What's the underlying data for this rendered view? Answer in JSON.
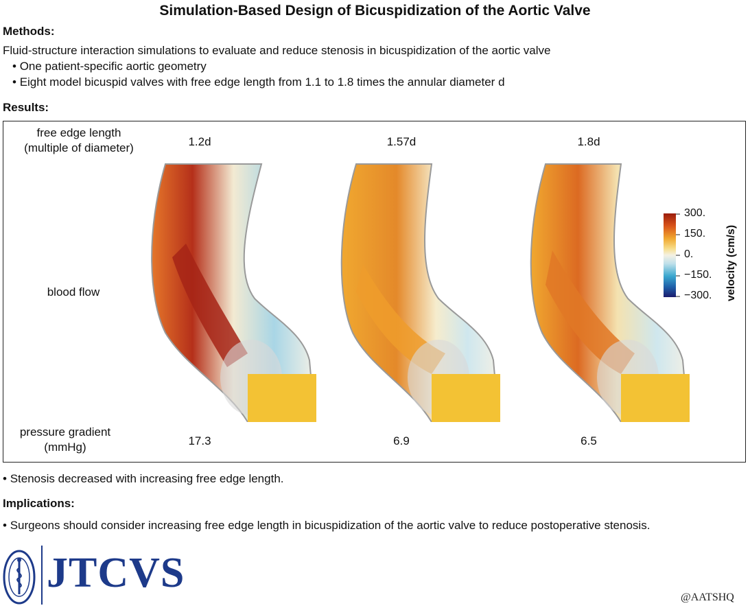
{
  "title": "Simulation-Based Design of Bicuspidization of the Aortic Valve",
  "methods": {
    "heading": "Methods:",
    "summary": "Fluid-structure interaction simulations to evaluate and reduce stenosis in bicuspidization of the aortic valve",
    "bullets": [
      "One patient-specific aortic geometry",
      "Eight model bicuspid valves with free edge length from 1.1 to 1.8 times the annular diameter d"
    ]
  },
  "results": {
    "heading": "Results:",
    "row_labels": {
      "free_edge": [
        "free edge length",
        "(multiple of diameter)"
      ],
      "blood_flow": "blood flow",
      "pressure": [
        "pressure gradient",
        "(mmHg)"
      ]
    },
    "columns": [
      {
        "free_edge": "1.2d",
        "pressure_gradient": "17.3",
        "intensity": "high"
      },
      {
        "free_edge": "1.57d",
        "pressure_gradient": "6.9",
        "intensity": "medium"
      },
      {
        "free_edge": "1.8d",
        "pressure_gradient": "6.5",
        "intensity": "medium"
      }
    ],
    "colorbar": {
      "label": "velocity (cm/s)",
      "ticks": [
        "300.",
        "150.",
        "0.",
        "−150.",
        "−300."
      ],
      "colors": [
        "#9b1c0c",
        "#d9541a",
        "#f0a830",
        "#f7dd8a",
        "#f4f1e4",
        "#bfe0ea",
        "#3aa7cf",
        "#1f5fa8",
        "#1c1c6e"
      ]
    },
    "finding": "Stenosis decreased with increasing free edge length."
  },
  "implications": {
    "heading": "Implications:",
    "bullet": "Surgeons should consider increasing free edge length in bicuspidization of the aortic valve to reduce postoperative stenosis."
  },
  "footer": {
    "journal": "JTCVS",
    "handle": "@AATSHQ",
    "logo_icon": "aats-seal-icon"
  }
}
